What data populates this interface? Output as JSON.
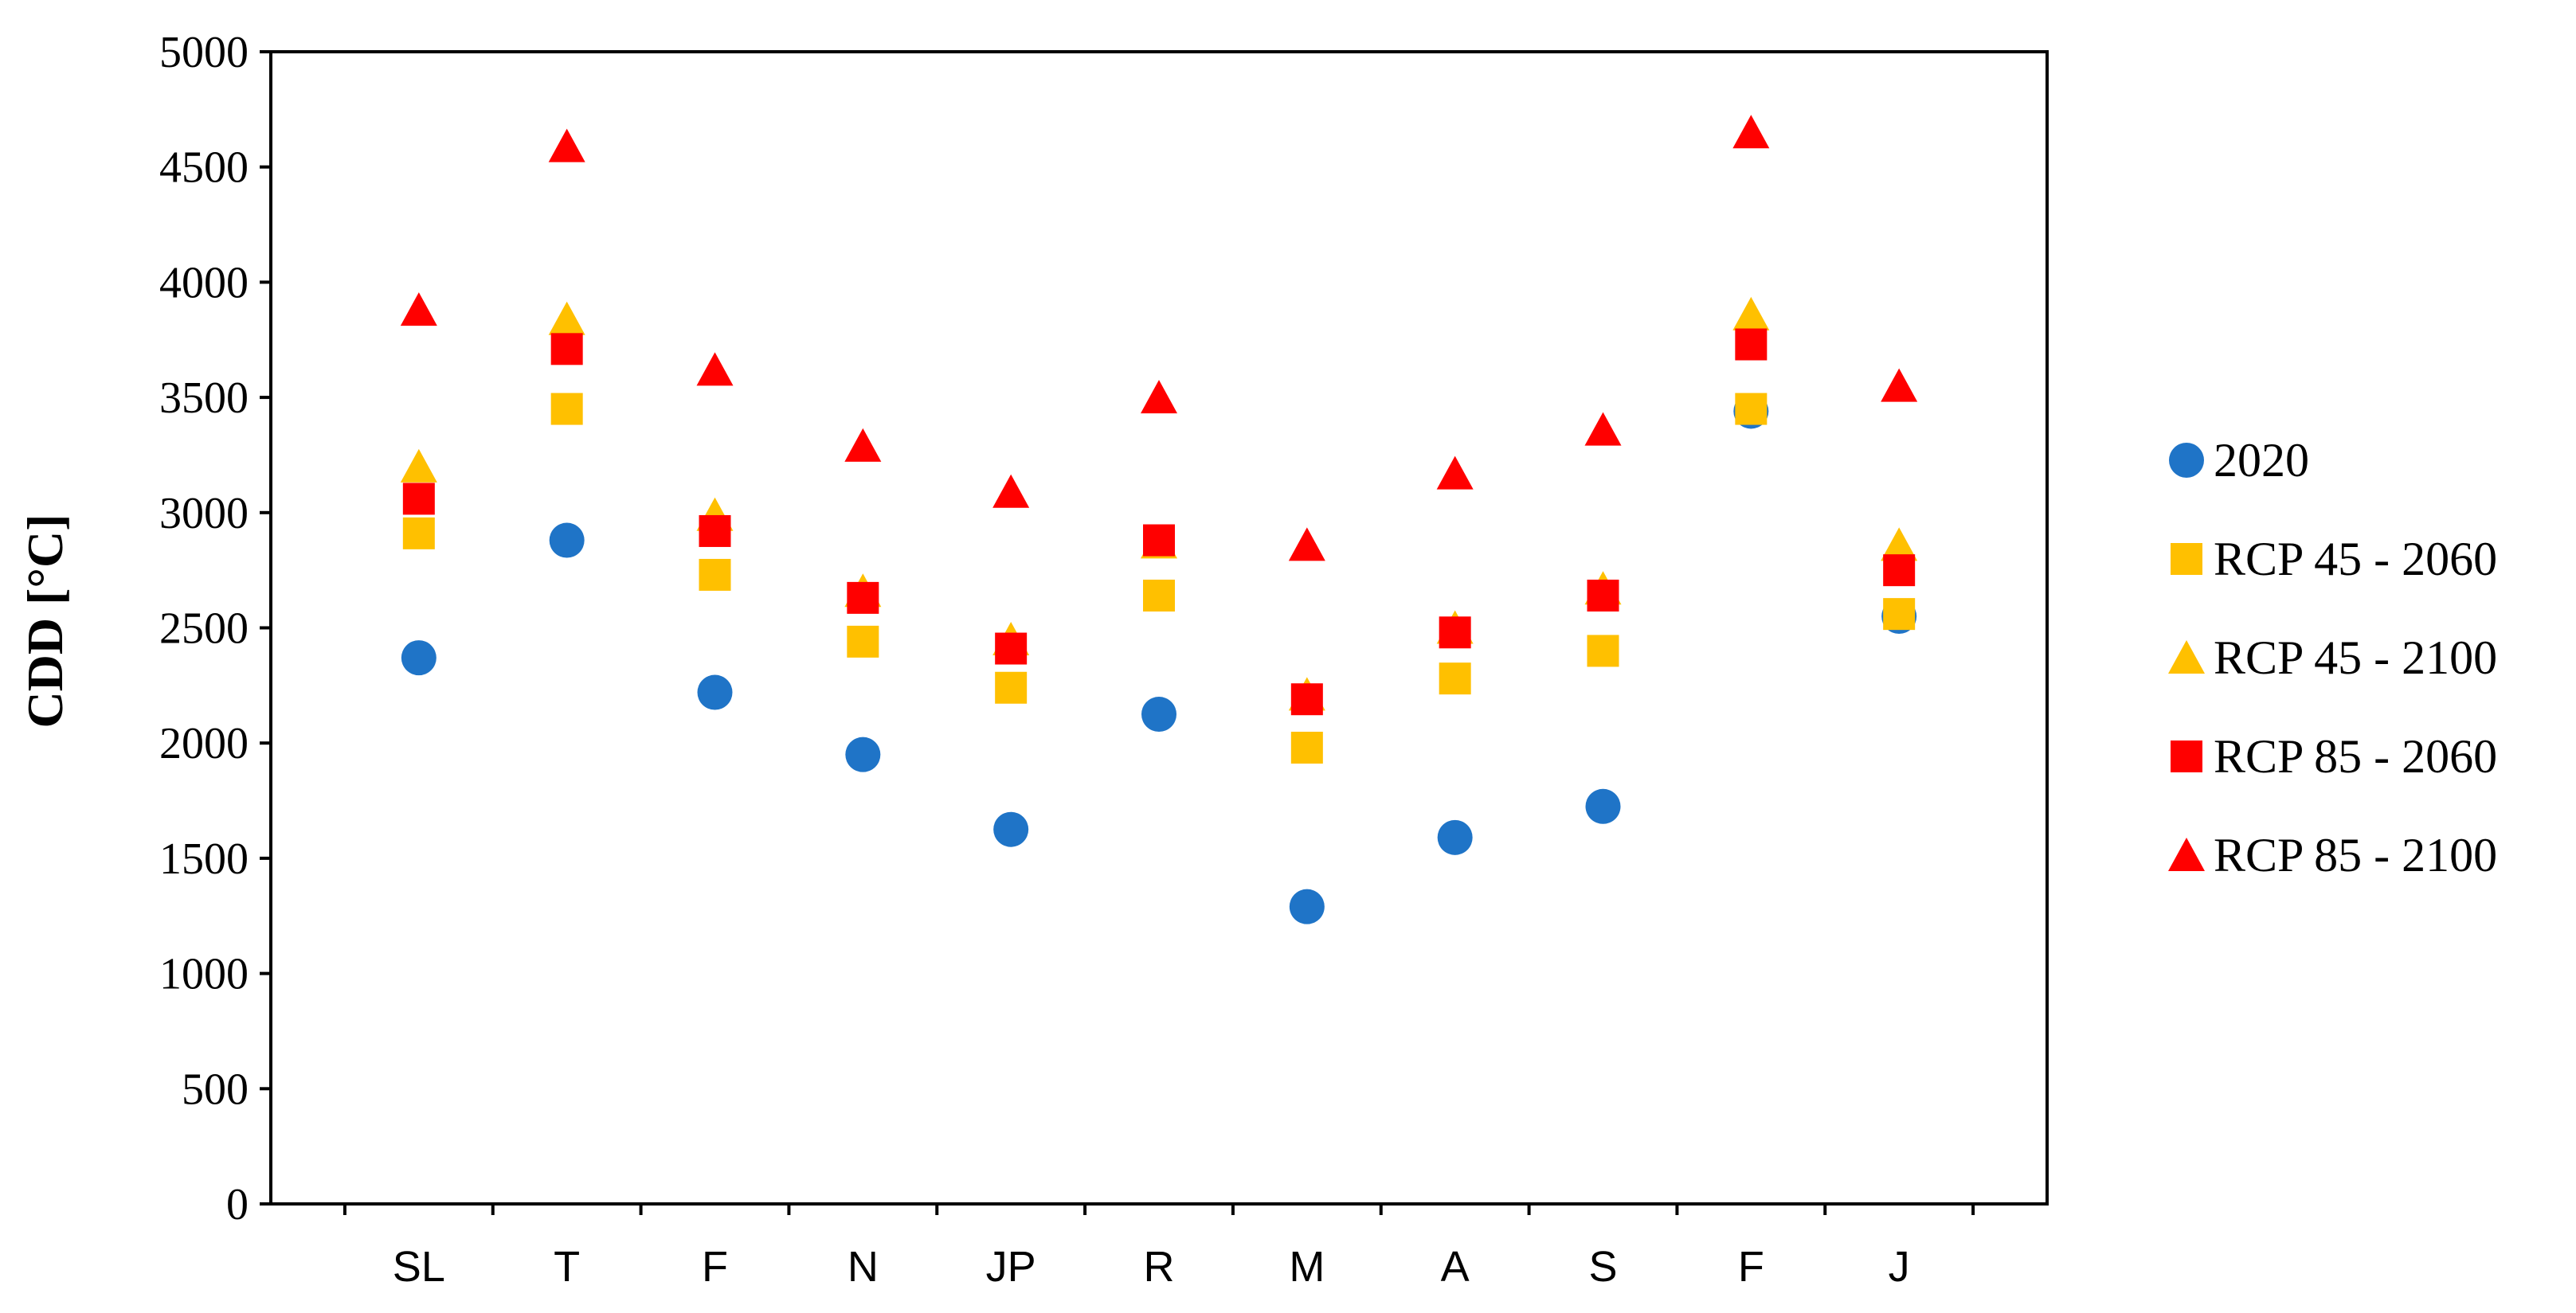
{
  "chart_data": {
    "type": "scatter",
    "title": "",
    "xlabel": "",
    "ylabel": "CDD [°C]",
    "ylim": [
      0,
      5000
    ],
    "yticks": [
      0,
      500,
      1000,
      1500,
      2000,
      2500,
      3000,
      3500,
      4000,
      4500,
      5000
    ],
    "grid": false,
    "legend_position": "right",
    "categories": [
      "SL",
      "T",
      "F",
      "N",
      "JP",
      "R",
      "M",
      "A",
      "S",
      "F",
      "J"
    ],
    "series": [
      {
        "name": "2020",
        "marker": "circle",
        "color": "#1f74c7",
        "values": [
          2370,
          2880,
          2220,
          1950,
          1625,
          2125,
          1290,
          1590,
          1725,
          3440,
          2550
        ]
      },
      {
        "name": "RCP 45 - 2060",
        "marker": "square",
        "color": "#ffc000",
        "values": [
          2910,
          3450,
          2730,
          2440,
          2240,
          2640,
          1980,
          2280,
          2400,
          3450,
          2560
        ]
      },
      {
        "name": "RCP 45 - 2100",
        "marker": "triangle",
        "color": "#ffc000",
        "values": [
          3200,
          3840,
          2990,
          2660,
          2450,
          2870,
          2210,
          2500,
          2670,
          3860,
          2860
        ]
      },
      {
        "name": "RCP 85 - 2060",
        "marker": "square",
        "color": "#ff0000",
        "values": [
          3060,
          3710,
          2920,
          2630,
          2410,
          2880,
          2190,
          2480,
          2640,
          3730,
          2750
        ]
      },
      {
        "name": "RCP 85 - 2100",
        "marker": "triangle",
        "color": "#ff0000",
        "values": [
          3880,
          4590,
          3620,
          3290,
          3090,
          3500,
          2860,
          3170,
          3360,
          4650,
          3550
        ]
      }
    ]
  }
}
